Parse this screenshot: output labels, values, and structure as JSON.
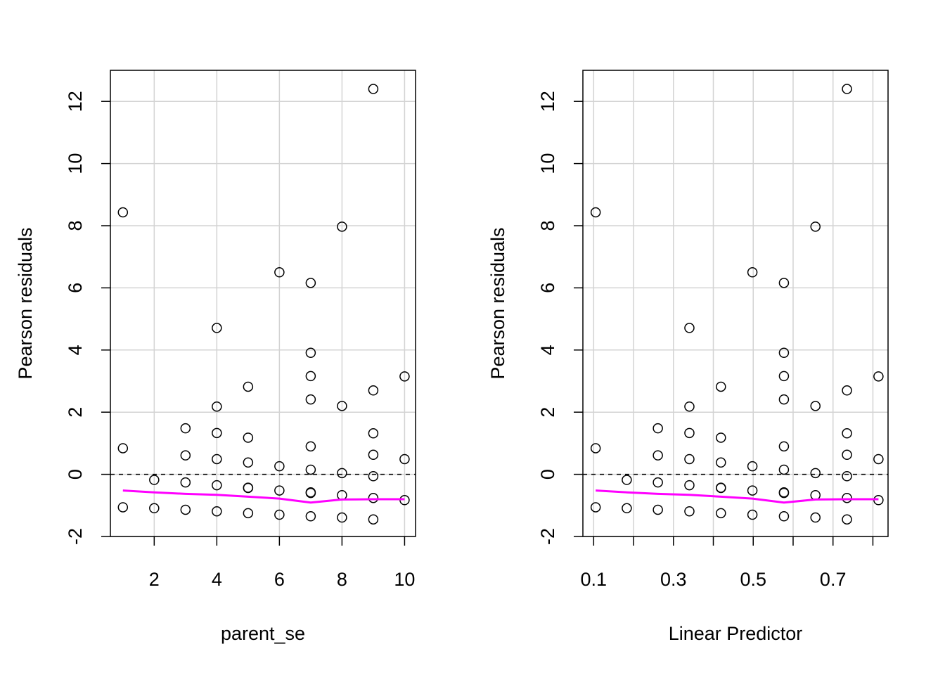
{
  "chart_data": [
    {
      "type": "scatter",
      "xlabel": "parent_se",
      "ylabel": "Pearson residuals",
      "xlim": [
        0.6,
        10.35
      ],
      "ylim": [
        -2.0,
        13.0
      ],
      "x_ticks": [
        2,
        4,
        6,
        8,
        10
      ],
      "y_ticks": [
        -2,
        0,
        2,
        4,
        6,
        8,
        10,
        12
      ],
      "grid_x": [
        2,
        4,
        6,
        8,
        10
      ],
      "grid": true,
      "reference_line": {
        "y": 0,
        "style": "dashed"
      },
      "points": {
        "x": [
          1,
          1,
          1,
          2,
          2,
          3,
          3,
          3,
          3,
          4,
          4,
          4,
          4,
          4,
          4,
          5,
          5,
          5,
          5,
          5,
          5,
          6,
          6,
          6,
          6,
          7,
          7,
          7,
          7,
          7,
          7,
          7,
          7,
          7,
          8,
          8,
          8,
          8,
          8,
          9,
          9,
          9,
          9,
          9,
          9,
          9,
          10,
          10,
          10
        ],
        "y": [
          8.43,
          0.84,
          -1.06,
          -0.18,
          -1.09,
          1.48,
          0.61,
          -0.26,
          -1.14,
          4.71,
          2.18,
          1.33,
          0.49,
          -0.35,
          -1.19,
          2.82,
          1.18,
          0.38,
          -0.43,
          -0.44,
          -1.25,
          6.5,
          0.26,
          -0.52,
          -1.3,
          6.16,
          3.91,
          3.16,
          2.41,
          0.9,
          0.15,
          -0.58,
          -0.6,
          -1.35,
          7.97,
          2.2,
          0.04,
          -0.67,
          -1.39,
          12.4,
          2.7,
          1.32,
          0.63,
          -0.06,
          -0.76,
          -1.45,
          3.15,
          0.49,
          -0.83
        ]
      },
      "smooth_line": {
        "x": [
          1,
          2,
          3,
          4,
          5,
          6,
          7,
          8,
          9,
          10
        ],
        "y": [
          -0.52,
          -0.58,
          -0.63,
          -0.66,
          -0.72,
          -0.78,
          -0.91,
          -0.81,
          -0.8,
          -0.8
        ],
        "color": "#FF00FF"
      }
    },
    {
      "type": "scatter",
      "xlabel": "Linear Predictor",
      "ylabel": "Pearson residuals",
      "xlim": [
        0.073,
        0.838
      ],
      "ylim": [
        -2.0,
        13.0
      ],
      "x_ticks": [
        0.1,
        0.3,
        0.5,
        0.7
      ],
      "x_minor_ticks": [
        0.2,
        0.4,
        0.6,
        0.8
      ],
      "y_ticks": [
        -2,
        0,
        2,
        4,
        6,
        8,
        10,
        12
      ],
      "grid_x": [
        0.1,
        0.2,
        0.3,
        0.4,
        0.5,
        0.6,
        0.7,
        0.8
      ],
      "grid": true,
      "reference_line": {
        "y": 0,
        "style": "dashed"
      },
      "points": {
        "x": [
          0.105,
          0.105,
          0.105,
          0.183,
          0.183,
          0.261,
          0.261,
          0.261,
          0.261,
          0.34,
          0.34,
          0.34,
          0.34,
          0.34,
          0.34,
          0.419,
          0.419,
          0.419,
          0.419,
          0.419,
          0.419,
          0.498,
          0.498,
          0.498,
          0.498,
          0.577,
          0.577,
          0.577,
          0.577,
          0.577,
          0.577,
          0.577,
          0.577,
          0.577,
          0.656,
          0.656,
          0.656,
          0.656,
          0.656,
          0.735,
          0.735,
          0.735,
          0.735,
          0.735,
          0.735,
          0.735,
          0.814,
          0.814,
          0.814
        ],
        "y": [
          8.43,
          0.84,
          -1.06,
          -0.18,
          -1.09,
          1.48,
          0.61,
          -0.26,
          -1.14,
          4.71,
          2.18,
          1.33,
          0.49,
          -0.35,
          -1.19,
          2.82,
          1.18,
          0.38,
          -0.43,
          -0.44,
          -1.25,
          6.5,
          0.26,
          -0.52,
          -1.3,
          6.16,
          3.91,
          3.16,
          2.41,
          0.9,
          0.15,
          -0.58,
          -0.6,
          -1.35,
          7.97,
          2.2,
          0.04,
          -0.67,
          -1.39,
          12.4,
          2.7,
          1.32,
          0.63,
          -0.06,
          -0.76,
          -1.45,
          3.15,
          0.49,
          -0.83
        ]
      },
      "smooth_line": {
        "x": [
          0.105,
          0.183,
          0.261,
          0.34,
          0.419,
          0.498,
          0.577,
          0.656,
          0.735,
          0.814
        ],
        "y": [
          -0.52,
          -0.58,
          -0.63,
          -0.66,
          -0.72,
          -0.78,
          -0.91,
          -0.81,
          -0.8,
          -0.8
        ],
        "color": "#FF00FF"
      }
    }
  ]
}
